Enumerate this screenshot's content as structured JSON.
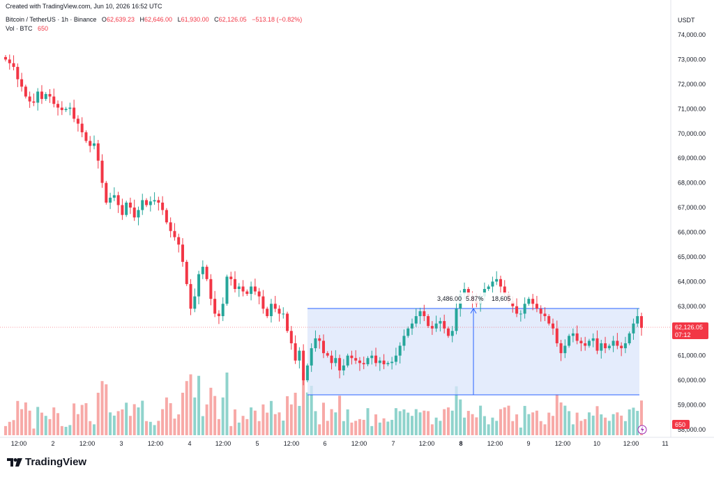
{
  "header": {
    "created": "Created with TradingView.com, Jun 10, 2026 16:52 UTC",
    "symbol": "Bitcoin / TetherUS · 1h · Binance",
    "o_label": "O",
    "o_value": "62,639.23",
    "h_label": "H",
    "h_value": "62,646.00",
    "l_label": "L",
    "l_value": "61,930.00",
    "c_label": "C",
    "c_value": "62,126.05",
    "change": "−513.18 (−0.82%)",
    "vol_label": "Vol · BTC",
    "vol_value": "650"
  },
  "price_axis": {
    "currency": "USDT",
    "labels": [
      "74,000.00",
      "73,000.00",
      "72,000.00",
      "71,000.00",
      "70,000.00",
      "69,000.00",
      "68,000.00",
      "67,000.00",
      "66,000.00",
      "65,000.00",
      "64,000.00",
      "63,000.00",
      "61,000.00",
      "60,000.00",
      "59,000.00",
      "58,000.00"
    ],
    "last_price": "62,126.05",
    "countdown": "07:12",
    "last_volume": "650"
  },
  "time_axis": {
    "labels": [
      "12:00",
      "2",
      "12:00",
      "3",
      "12:00",
      "4",
      "12:00",
      "5",
      "12:00",
      "6",
      "12:00",
      "7",
      "12:00",
      "8",
      "12:00",
      "9",
      "12:00",
      "10",
      "12:00",
      "11"
    ]
  },
  "measure": {
    "label_left": "3,486.00",
    "label_mid": "5.87%",
    "label_right": "18,605"
  },
  "colors": {
    "up": "#26a69a",
    "down": "#f23645",
    "vol_up": "#8fd3cc",
    "vol_down": "#f7a9a7",
    "range_fill": "#dbe5fb",
    "range_stroke": "#2962ff"
  },
  "branding": {
    "name": "TradingView"
  },
  "chart_data": {
    "type": "candlestick",
    "title": "Bitcoin / TetherUS · 1h · Binance",
    "ylabel": "USDT",
    "ylim": [
      57800,
      74600
    ],
    "closes": [
      73000,
      72850,
      72700,
      72200,
      71900,
      71500,
      71300,
      71250,
      71700,
      71400,
      71600,
      71500,
      71200,
      71050,
      70950,
      71000,
      71050,
      70600,
      70400,
      70050,
      69700,
      69500,
      69600,
      68900,
      68000,
      67200,
      67400,
      67500,
      67100,
      66700,
      67200,
      67000,
      66600,
      66900,
      67300,
      67100,
      67250,
      67300,
      67200,
      66900,
      66400,
      66050,
      65800,
      65500,
      64800,
      63900,
      62900,
      63400,
      64300,
      64600,
      64100,
      63300,
      62700,
      62600,
      63100,
      64200,
      64100,
      63700,
      63800,
      63600,
      63500,
      63800,
      63600,
      63400,
      62900,
      62600,
      63100,
      62900,
      62700,
      62700,
      62000,
      61500,
      60800,
      61200,
      60000,
      60600,
      61300,
      61700,
      61600,
      61100,
      61000,
      60700,
      60900,
      60400,
      60600,
      61000,
      60900,
      60800,
      60700,
      60650,
      60900,
      61000,
      60700,
      60800,
      60650,
      60700,
      60750,
      61000,
      61400,
      61800,
      62100,
      62300,
      62600,
      62800,
      62600,
      62200,
      62100,
      62300,
      62400,
      62100,
      61800,
      62000,
      62900,
      63500,
      63700,
      63400,
      63200,
      63100,
      63400,
      63700,
      63800,
      64000,
      64100,
      63800,
      63500,
      63200,
      63000,
      62700,
      62700,
      63100,
      63300,
      63100,
      62900,
      62700,
      62600,
      62300,
      62100,
      61500,
      61100,
      61400,
      61800,
      61900,
      61600,
      61500,
      61400,
      61600,
      61700,
      61200,
      61500,
      61300,
      61400,
      61600,
      61400,
      61300,
      61500,
      61900,
      62300,
      62600,
      62126
    ]
  }
}
